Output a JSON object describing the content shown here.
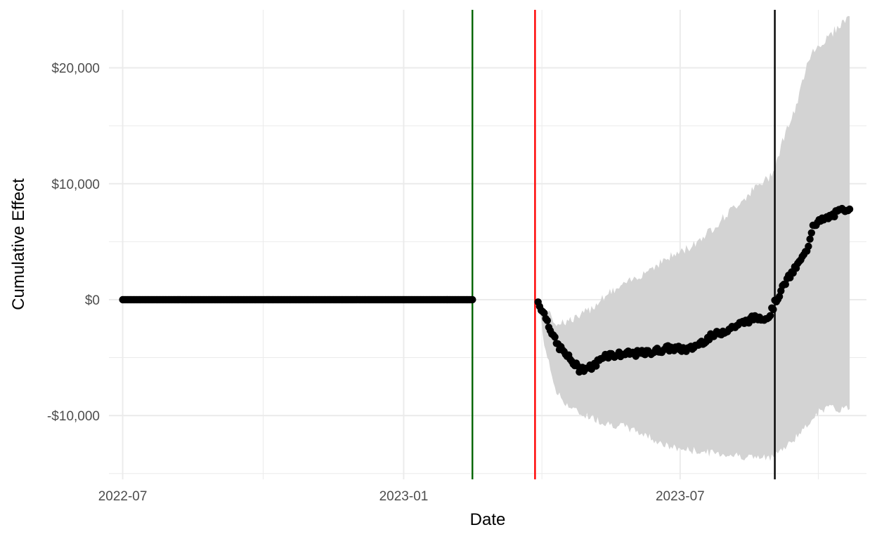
{
  "chart_data": {
    "type": "scatter",
    "xlabel": "Date",
    "ylabel": "Cumulative Effect",
    "xlim": [
      "2022-06-22",
      "2023-10-31"
    ],
    "ylim": [
      -15500,
      25000
    ],
    "grid": true,
    "x_ticks": [
      "2022-07-01",
      "2023-01-01",
      "2023-07-01"
    ],
    "x_tick_labels": [
      "2022-07",
      "2023-01",
      "2023-07"
    ],
    "y_ticks": [
      -10000,
      0,
      10000,
      20000
    ],
    "y_tick_labels": [
      "-$10,000",
      "$0",
      "$10,000",
      "$20,000"
    ],
    "vlines": [
      {
        "x": "2023-02-15",
        "color": "#006400"
      },
      {
        "x": "2023-03-28",
        "color": "#ff0000"
      },
      {
        "x": "2023-09-01",
        "color": "#000000"
      }
    ],
    "band_color": "#d3d3d3",
    "point_color": "#000000",
    "pre_period": {
      "start": "2022-07-01",
      "end": "2023-02-15",
      "value": 0
    },
    "post_period": {
      "start": "2023-03-30",
      "end": "2023-10-20",
      "anchors": [
        {
          "date": "2023-03-30",
          "value": -200,
          "lower": -200,
          "upper": -200
        },
        {
          "date": "2023-04-04",
          "value": -1500,
          "lower": -4500,
          "upper": -1000
        },
        {
          "date": "2023-04-11",
          "value": -3800,
          "lower": -8000,
          "upper": -2000
        },
        {
          "date": "2023-04-19",
          "value": -5000,
          "lower": -9200,
          "upper": -1800
        },
        {
          "date": "2023-04-26",
          "value": -6000,
          "lower": -9800,
          "upper": -1500
        },
        {
          "date": "2023-05-05",
          "value": -5800,
          "lower": -10200,
          "upper": -600
        },
        {
          "date": "2023-05-12",
          "value": -4800,
          "lower": -10600,
          "upper": 300
        },
        {
          "date": "2023-05-26",
          "value": -4700,
          "lower": -11000,
          "upper": 1300
        },
        {
          "date": "2023-06-09",
          "value": -4600,
          "lower": -11700,
          "upper": 2500
        },
        {
          "date": "2023-06-23",
          "value": -4200,
          "lower": -12700,
          "upper": 3600
        },
        {
          "date": "2023-07-07",
          "value": -4300,
          "lower": -13000,
          "upper": 4500
        },
        {
          "date": "2023-07-21",
          "value": -3200,
          "lower": -13200,
          "upper": 6000
        },
        {
          "date": "2023-08-04",
          "value": -2400,
          "lower": -13400,
          "upper": 7800
        },
        {
          "date": "2023-08-18",
          "value": -1600,
          "lower": -13600,
          "upper": 9500
        },
        {
          "date": "2023-08-28",
          "value": -1500,
          "lower": -13700,
          "upper": 10500
        },
        {
          "date": "2023-09-01",
          "value": -300,
          "lower": -13200,
          "upper": 11500
        },
        {
          "date": "2023-09-08",
          "value": 1500,
          "lower": -12800,
          "upper": 14500
        },
        {
          "date": "2023-09-15",
          "value": 2800,
          "lower": -11800,
          "upper": 16500
        },
        {
          "date": "2023-09-22",
          "value": 4200,
          "lower": -11000,
          "upper": 20500
        },
        {
          "date": "2023-09-26",
          "value": 6500,
          "lower": -10000,
          "upper": 21500
        },
        {
          "date": "2023-10-05",
          "value": 7000,
          "lower": -9300,
          "upper": 22500
        },
        {
          "date": "2023-10-12",
          "value": 7500,
          "lower": -9500,
          "upper": 23500
        },
        {
          "date": "2023-10-20",
          "value": 8000,
          "lower": -9300,
          "upper": 24500
        }
      ]
    }
  }
}
